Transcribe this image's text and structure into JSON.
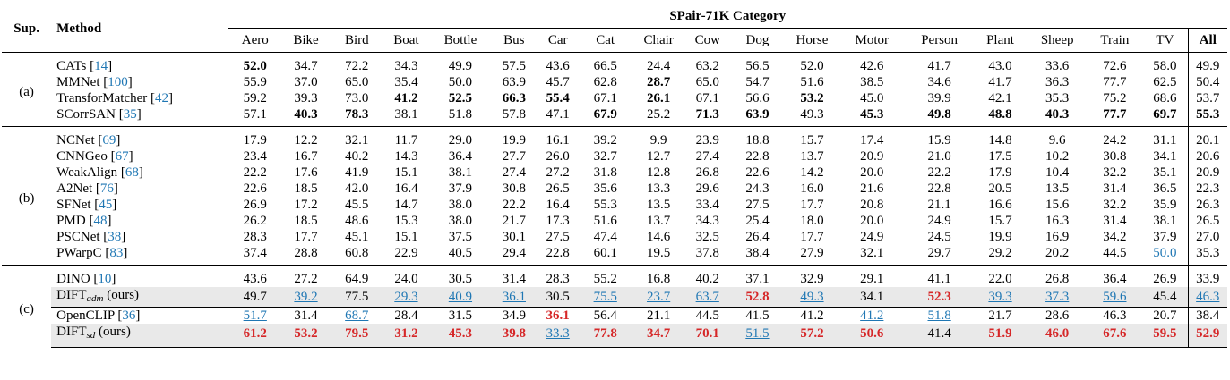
{
  "table": {
    "header": {
      "sup": "Sup.",
      "method": "Method",
      "group": "SPair-71K Category",
      "categories": [
        "Aero",
        "Bike",
        "Bird",
        "Boat",
        "Bottle",
        "Bus",
        "Car",
        "Cat",
        "Chair",
        "Cow",
        "Dog",
        "Horse",
        "Motor",
        "Person",
        "Plant",
        "Sheep",
        "Train",
        "TV"
      ],
      "all": "All"
    },
    "groups": [
      {
        "label": "(a)",
        "rows": [
          {
            "method": "CATs",
            "cite": "14",
            "values": [
              "52.0",
              "34.7",
              "72.2",
              "34.3",
              "49.9",
              "57.5",
              "43.6",
              "66.5",
              "24.4",
              "63.2",
              "56.5",
              "52.0",
              "42.6",
              "41.7",
              "43.0",
              "33.6",
              "72.6",
              "58.0"
            ],
            "all": "49.9"
          },
          {
            "method": "MMNet",
            "cite": "100",
            "values": [
              "55.9",
              "37.0",
              "65.0",
              "35.4",
              "50.0",
              "63.9",
              "45.7",
              "62.8",
              "28.7",
              "65.0",
              "54.7",
              "51.6",
              "38.5",
              "34.6",
              "41.7",
              "36.3",
              "77.7",
              "62.5"
            ],
            "all": "50.4"
          },
          {
            "method": "TransforMatcher",
            "cite": "42",
            "values": [
              "59.2",
              "39.3",
              "73.0",
              "41.2",
              "52.5",
              "66.3",
              "55.4",
              "67.1",
              "26.1",
              "67.1",
              "56.6",
              "53.2",
              "45.0",
              "39.9",
              "42.1",
              "35.3",
              "75.2",
              "68.6"
            ],
            "all": "53.7"
          },
          {
            "method": "SCorrSAN",
            "cite": "35",
            "values": [
              "57.1",
              "40.3",
              "78.3",
              "38.1",
              "51.8",
              "57.8",
              "47.1",
              "67.9",
              "25.2",
              "71.3",
              "63.9",
              "49.3",
              "45.3",
              "49.8",
              "48.8",
              "40.3",
              "77.7",
              "69.7"
            ],
            "all": "55.3"
          }
        ]
      },
      {
        "label": "(b)",
        "rows": [
          {
            "method": "NCNet",
            "cite": "69",
            "values": [
              "17.9",
              "12.2",
              "32.1",
              "11.7",
              "29.0",
              "19.9",
              "16.1",
              "39.2",
              "9.9",
              "23.9",
              "18.8",
              "15.7",
              "17.4",
              "15.9",
              "14.8",
              "9.6",
              "24.2",
              "31.1"
            ],
            "all": "20.1"
          },
          {
            "method": "CNNGeo",
            "cite": "67",
            "values": [
              "23.4",
              "16.7",
              "40.2",
              "14.3",
              "36.4",
              "27.7",
              "26.0",
              "32.7",
              "12.7",
              "27.4",
              "22.8",
              "13.7",
              "20.9",
              "21.0",
              "17.5",
              "10.2",
              "30.8",
              "34.1"
            ],
            "all": "20.6"
          },
          {
            "method": "WeakAlign",
            "cite": "68",
            "values": [
              "22.2",
              "17.6",
              "41.9",
              "15.1",
              "38.1",
              "27.4",
              "27.2",
              "31.8",
              "12.8",
              "26.8",
              "22.6",
              "14.2",
              "20.0",
              "22.2",
              "17.9",
              "10.4",
              "32.2",
              "35.1"
            ],
            "all": "20.9"
          },
          {
            "method": "A2Net",
            "cite": "76",
            "values": [
              "22.6",
              "18.5",
              "42.0",
              "16.4",
              "37.9",
              "30.8",
              "26.5",
              "35.6",
              "13.3",
              "29.6",
              "24.3",
              "16.0",
              "21.6",
              "22.8",
              "20.5",
              "13.5",
              "31.4",
              "36.5"
            ],
            "all": "22.3"
          },
          {
            "method": "SFNet",
            "cite": "45",
            "values": [
              "26.9",
              "17.2",
              "45.5",
              "14.7",
              "38.0",
              "22.2",
              "16.4",
              "55.3",
              "13.5",
              "33.4",
              "27.5",
              "17.7",
              "20.8",
              "21.1",
              "16.6",
              "15.6",
              "32.2",
              "35.9"
            ],
            "all": "26.3"
          },
          {
            "method": "PMD",
            "cite": "48",
            "values": [
              "26.2",
              "18.5",
              "48.6",
              "15.3",
              "38.0",
              "21.7",
              "17.3",
              "51.6",
              "13.7",
              "34.3",
              "25.4",
              "18.0",
              "20.0",
              "24.9",
              "15.7",
              "16.3",
              "31.4",
              "38.1"
            ],
            "all": "26.5"
          },
          {
            "method": "PSCNet",
            "cite": "38",
            "values": [
              "28.3",
              "17.7",
              "45.1",
              "15.1",
              "37.5",
              "30.1",
              "27.5",
              "47.4",
              "14.6",
              "32.5",
              "26.4",
              "17.7",
              "24.9",
              "24.5",
              "19.9",
              "16.9",
              "34.2",
              "37.9"
            ],
            "all": "27.0"
          },
          {
            "method": "PWarpC",
            "cite": "83",
            "values": [
              "37.4",
              "28.8",
              "60.8",
              "22.9",
              "40.5",
              "29.4",
              "22.8",
              "60.1",
              "19.5",
              "37.8",
              "38.4",
              "27.9",
              "32.1",
              "29.7",
              "29.2",
              "20.2",
              "44.5",
              "50.0"
            ],
            "all": "35.3"
          }
        ]
      },
      {
        "label": "(c)",
        "rows": [
          {
            "method": "DINO",
            "cite": "10",
            "values": [
              "43.6",
              "27.2",
              "64.9",
              "24.0",
              "30.5",
              "31.4",
              "28.3",
              "55.2",
              "16.8",
              "40.2",
              "37.1",
              "32.9",
              "29.1",
              "41.1",
              "22.0",
              "26.8",
              "36.4",
              "26.9"
            ],
            "all": "33.9"
          },
          {
            "method": "DIFT",
            "sub": "adm",
            "suffix": "(ours)",
            "shaded": true,
            "values": [
              "49.7",
              "39.2",
              "77.5",
              "29.3",
              "40.9",
              "36.1",
              "30.5",
              "75.5",
              "23.7",
              "63.7",
              "52.8",
              "49.3",
              "34.1",
              "52.3",
              "39.3",
              "37.3",
              "59.6",
              "45.4"
            ],
            "all": "46.3"
          },
          {
            "method": "OpenCLIP",
            "cite": "36",
            "dashed_top": true,
            "values": [
              "51.7",
              "31.4",
              "68.7",
              "28.4",
              "31.5",
              "34.9",
              "36.1",
              "56.4",
              "21.1",
              "44.5",
              "41.5",
              "41.2",
              "41.2",
              "51.8",
              "21.7",
              "28.6",
              "46.3",
              "20.7"
            ],
            "all": "38.4"
          },
          {
            "method": "DIFT",
            "sub": "sd",
            "suffix": "(ours)",
            "shaded": true,
            "values": [
              "61.2",
              "53.2",
              "79.5",
              "31.2",
              "45.3",
              "39.8",
              "33.3",
              "77.8",
              "34.7",
              "70.1",
              "51.5",
              "57.2",
              "50.6",
              "41.4",
              "51.9",
              "46.0",
              "67.6",
              "59.5"
            ],
            "all": "52.9"
          }
        ]
      }
    ],
    "styles": {
      "bold": [
        "0-0-0",
        "0-2-8",
        "0-2-3",
        "0-2-4",
        "0-2-5",
        "0-2-6",
        "0-2-11",
        "0-3-1",
        "0-3-2",
        "0-3-7",
        "0-3-9",
        "0-3-10",
        "0-3-12",
        "0-3-13",
        "0-3-14",
        "0-3-15",
        "0-3-16",
        "0-3-17",
        "0-3-all",
        "0-1-8"
      ],
      "red": [
        "2-1-10",
        "2-1-13",
        "2-2-6",
        "2-3-0",
        "2-3-1",
        "2-3-2",
        "2-3-3",
        "2-3-4",
        "2-3-5",
        "2-3-7",
        "2-3-8",
        "2-3-9",
        "2-3-11",
        "2-3-12",
        "2-3-14",
        "2-3-15",
        "2-3-16",
        "2-3-17",
        "2-3-all"
      ],
      "blue": [
        "1-7-17",
        "2-1-1",
        "2-1-3",
        "2-1-4",
        "2-1-5",
        "2-1-7",
        "2-1-8",
        "2-1-9",
        "2-1-11",
        "2-1-14",
        "2-1-15",
        "2-1-16",
        "2-1-all",
        "2-2-0",
        "2-2-2",
        "2-2-12",
        "2-2-13",
        "2-3-6",
        "2-3-10"
      ]
    },
    "colors": {
      "red": "#d62728",
      "blue": "#1f77b4",
      "shade": "#e9e9e9"
    }
  }
}
